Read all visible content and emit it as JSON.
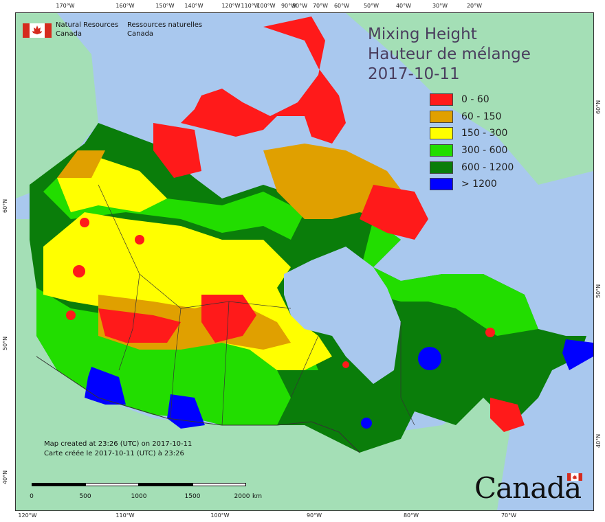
{
  "map": {
    "title_en": "Mixing Height",
    "title_fr": "Hauteur de mélange",
    "date": "2017-10-11",
    "legend": [
      {
        "label": "0 - 60",
        "color": "#ff1a1a"
      },
      {
        "label": "60 - 150",
        "color": "#e0a000"
      },
      {
        "label": "150 - 300",
        "color": "#ffff00"
      },
      {
        "label": "300 - 600",
        "color": "#22dd00"
      },
      {
        "label": "600 - 1200",
        "color": "#0a7d0a"
      },
      {
        "label": "> 1200",
        "color": "#0000ff"
      }
    ],
    "colors": {
      "water": "#a9c8ee",
      "land_outside": "#a4dfb6",
      "border": "#333333"
    }
  },
  "agency": {
    "name_en_line1": "Natural Resources",
    "name_en_line2": "Canada",
    "name_fr_line1": "Ressources naturelles",
    "name_fr_line2": "Canada"
  },
  "credit": {
    "line_en": "Map created at 23:26 (UTC) on 2017-10-11",
    "line_fr": "Carte créée le 2017-10-11 (UTC) à 23:26"
  },
  "scale": {
    "labels": [
      "0",
      "500",
      "1000",
      "1500",
      "2000"
    ],
    "unit": "km"
  },
  "wordmark": "Canada",
  "grid_labels": {
    "top": [
      "170°W",
      "160°W",
      "150°W",
      "140°W",
      "120°W",
      "110°W",
      "100°W",
      "90°W",
      "80°W",
      "70°W",
      "60°W",
      "50°W",
      "40°W",
      "30°W",
      "20°W"
    ],
    "bottom": [
      "120°W",
      "110°W",
      "100°W",
      "90°W",
      "80°W",
      "70°W"
    ],
    "left": [
      "60°N",
      "50°N",
      "40°N"
    ],
    "right": [
      "60°N",
      "50°N",
      "40°N"
    ]
  }
}
